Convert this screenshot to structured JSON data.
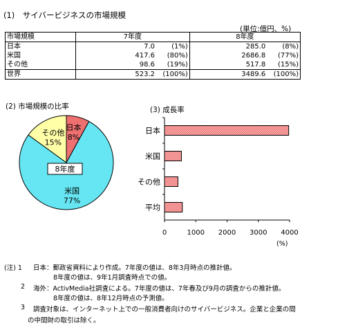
{
  "title": "(1)　サイバービジネスの市場規模",
  "unit": "(単位:億円、%)",
  "table": {
    "headers": [
      "市場規模",
      "7年度",
      "8年度"
    ],
    "rows": [
      {
        "label": "日本",
        "v7": "7.0",
        "p7": "(1%)",
        "v8": "285.0",
        "p8": "(8%)"
      },
      {
        "label": "米国",
        "v7": "417.6",
        "p7": "(80%)",
        "v8": "2686.8",
        "p8": "(77%)"
      },
      {
        "label": "その他",
        "v7": "98.6",
        "p7": "(19%)",
        "v8": "517.8",
        "p8": "(15%)"
      }
    ],
    "total": {
      "label": "世界",
      "v7": "523.2",
      "p7": "(100%)",
      "v8": "3489.6",
      "p8": "(100%)"
    }
  },
  "pie_title": "(2) 市場規模の比率",
  "pie_center_label": "8年度",
  "bar_title": "(3) 成長率",
  "bar_unit": "(%)",
  "chart_data": [
    {
      "type": "pie",
      "title": "(2) 市場規模の比率",
      "center_label": "8年度",
      "slices": [
        {
          "name": "日本",
          "value": 8,
          "label": "8%",
          "color": "#ee7070"
        },
        {
          "name": "米国",
          "value": 77,
          "label": "77%",
          "color": "#66e6f2"
        },
        {
          "name": "その他",
          "value": 15,
          "label": "15%",
          "color": "#ffffa8"
        }
      ]
    },
    {
      "type": "bar",
      "orientation": "horizontal",
      "title": "(3) 成長率",
      "categories": [
        "日本",
        "米国",
        "その他",
        "平均"
      ],
      "values": [
        3970,
        540,
        430,
        570
      ],
      "xlim": [
        0,
        4000
      ],
      "xticks": [
        "0",
        "1000",
        "2000",
        "3000",
        "4000"
      ],
      "xlabel": "(%)",
      "color": "#ee7070"
    }
  ],
  "notes": [
    {
      "mark": "(注) 1",
      "lines": [
        "日本：郵政省資料により作成。7年度の値は、8年3月時点の推計値。",
        "8年度の値は、9年1月調査時点での値。"
      ]
    },
    {
      "mark": "2",
      "lines": [
        "海外：ActivMedia社調査による。7年度の値は、7年春及び9月の調査からの推計値。",
        "8年度の値は、8年12月時点の予測値。"
      ]
    },
    {
      "mark": "3",
      "lines": [
        "調査対象は、インターネット上での一般消費者向けのサイバービジネス。企業と企業の間",
        "の中間財の取引は除く。"
      ]
    }
  ]
}
